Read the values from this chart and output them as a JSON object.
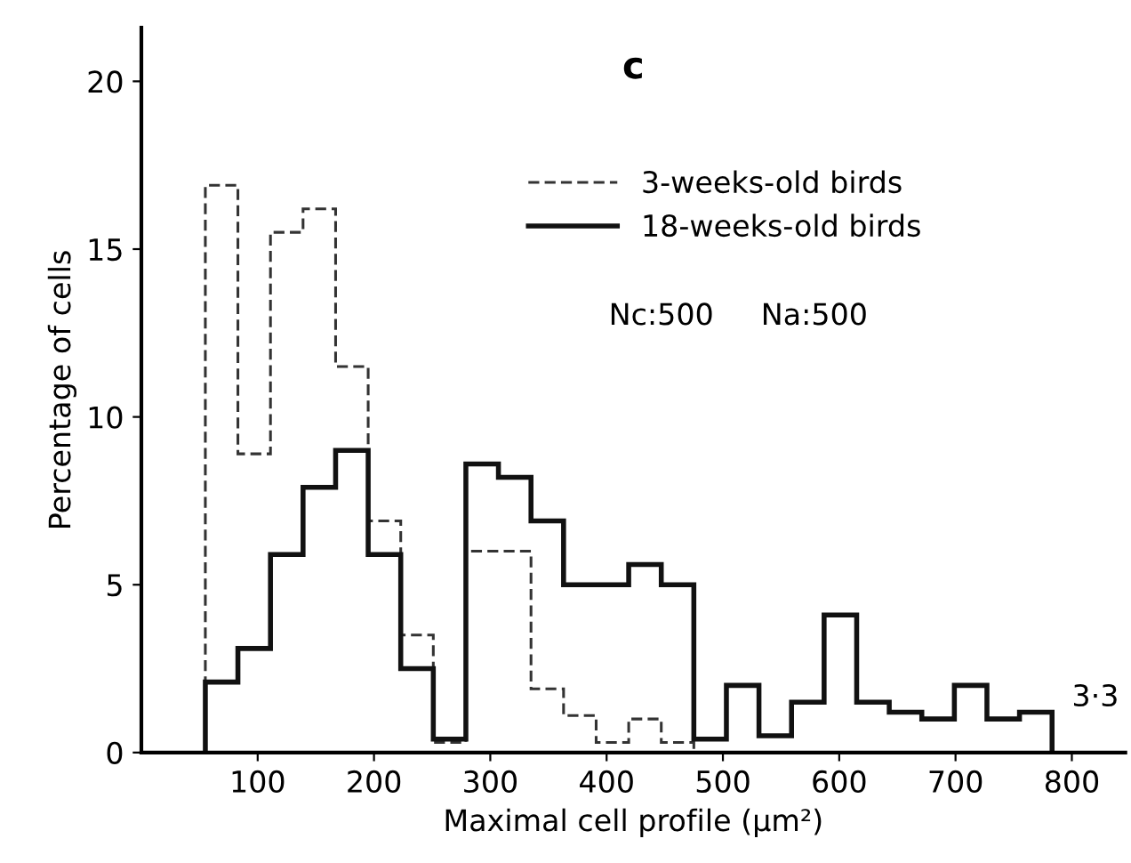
{
  "chart_data": {
    "type": "histogram",
    "xlabel": "Maximal cell profile (µm²)",
    "ylabel": "Percentage of cells",
    "bins": [
      55,
      83,
      111,
      139,
      167,
      195,
      223,
      251,
      279,
      307,
      335,
      363,
      391,
      419,
      447,
      475,
      503,
      531,
      559,
      587,
      615,
      643,
      671,
      699,
      727,
      755,
      783
    ],
    "series": [
      {
        "name": "3-weeks-old birds",
        "color": "#333333",
        "line_style": "dashed",
        "values": [
          16.9,
          8.9,
          15.5,
          16.2,
          11.5,
          6.9,
          3.5,
          0.3,
          6.0,
          6.0,
          1.9,
          1.1,
          0.3,
          1.0,
          0.3,
          0,
          0,
          0,
          0,
          0,
          0,
          0,
          0,
          0,
          0,
          0
        ]
      },
      {
        "name": "18-weeks-old birds",
        "color": "#111111",
        "line_style": "solid",
        "values": [
          2.1,
          3.1,
          5.9,
          7.9,
          9.0,
          5.9,
          2.5,
          0.4,
          8.6,
          8.2,
          6.9,
          5.0,
          5.0,
          5.6,
          5.0,
          0.4,
          2.0,
          0.5,
          1.5,
          4.1,
          1.5,
          1.2,
          1.0,
          2.0,
          1.0,
          1.2
        ]
      }
    ],
    "xlim": [
      0,
      846
    ],
    "ylim": [
      0,
      21.6
    ],
    "xticks": [
      100,
      200,
      300,
      400,
      500,
      600,
      700,
      800
    ],
    "yticks": [
      0,
      5,
      10,
      15,
      20
    ],
    "grid": false,
    "legend": "top right",
    "annotations": [
      "c",
      "Nc:500     Na:500",
      {
        "text": "3·3",
        "x": 783,
        "y": 1.2
      }
    ]
  }
}
